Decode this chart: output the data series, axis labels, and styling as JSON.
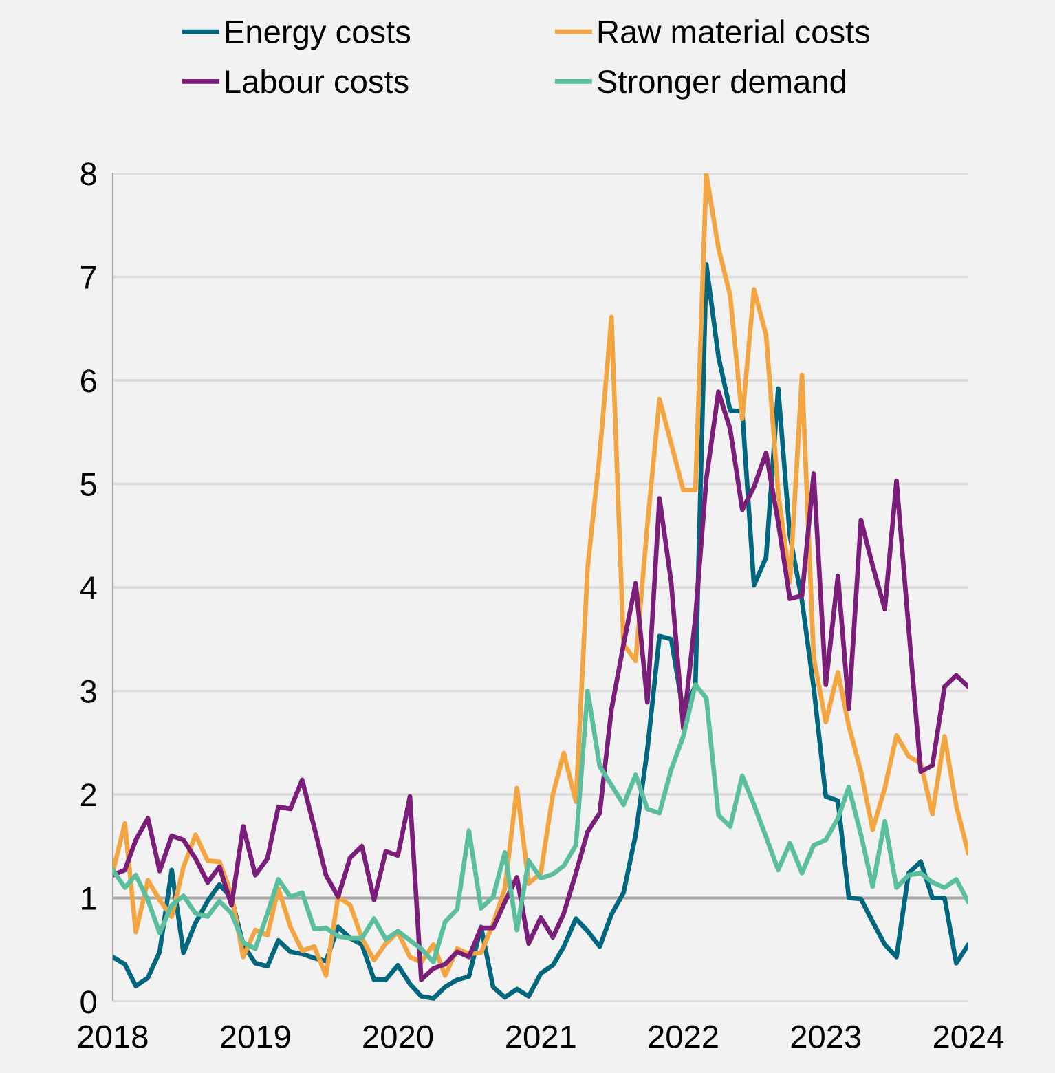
{
  "chart_data": {
    "type": "line",
    "x": [
      "2018-01",
      "2018-02",
      "2018-03",
      "2018-04",
      "2018-05",
      "2018-06",
      "2018-07",
      "2018-08",
      "2018-09",
      "2018-10",
      "2018-11",
      "2018-12",
      "2019-01",
      "2019-02",
      "2019-03",
      "2019-04",
      "2019-05",
      "2019-06",
      "2019-07",
      "2019-08",
      "2019-09",
      "2019-10",
      "2019-11",
      "2019-12",
      "2020-01",
      "2020-02",
      "2020-03",
      "2020-04",
      "2020-05",
      "2020-06",
      "2020-07",
      "2020-08",
      "2020-09",
      "2020-10",
      "2020-11",
      "2020-12",
      "2021-01",
      "2021-02",
      "2021-03",
      "2021-04",
      "2021-05",
      "2021-06",
      "2021-07",
      "2021-08",
      "2021-09",
      "2021-10",
      "2021-11",
      "2021-12",
      "2022-01",
      "2022-02",
      "2022-03",
      "2022-04",
      "2022-05",
      "2022-06",
      "2022-07",
      "2022-08",
      "2022-09",
      "2022-10",
      "2022-11",
      "2022-12",
      "2023-01",
      "2023-02",
      "2023-03",
      "2023-04",
      "2023-05",
      "2023-06",
      "2023-07",
      "2023-08",
      "2023-09",
      "2023-10",
      "2023-11",
      "2023-12",
      "2024-01"
    ],
    "series": [
      {
        "name": "Energy costs",
        "color": "#00677f",
        "values": [
          0.43,
          0.36,
          0.15,
          0.23,
          0.48,
          1.27,
          0.47,
          0.76,
          0.97,
          1.13,
          1.0,
          0.55,
          0.37,
          0.34,
          0.59,
          0.48,
          0.46,
          0.42,
          0.39,
          0.72,
          0.61,
          0.55,
          0.21,
          0.21,
          0.35,
          0.17,
          0.05,
          0.03,
          0.14,
          0.21,
          0.24,
          0.72,
          0.14,
          0.04,
          0.12,
          0.05,
          0.27,
          0.35,
          0.53,
          0.8,
          0.68,
          0.53,
          0.84,
          1.05,
          1.61,
          2.43,
          3.53,
          3.5,
          2.8,
          3.05,
          7.12,
          6.23,
          5.71,
          5.7,
          4.02,
          4.29,
          5.92,
          4.5,
          3.87,
          3.03,
          1.98,
          1.94,
          1.0,
          0.99,
          0.77,
          0.55,
          0.43,
          1.24,
          1.35,
          1.0,
          1.0,
          0.37,
          0.55
        ]
      },
      {
        "name": "Raw material costs",
        "color": "#f2a541",
        "values": [
          1.25,
          1.72,
          0.67,
          1.17,
          0.98,
          0.82,
          1.3,
          1.61,
          1.36,
          1.35,
          1.03,
          0.43,
          0.69,
          0.64,
          1.09,
          0.72,
          0.49,
          0.53,
          0.25,
          1.01,
          0.93,
          0.61,
          0.4,
          0.56,
          0.67,
          0.43,
          0.38,
          0.55,
          0.25,
          0.51,
          0.46,
          0.47,
          0.75,
          1.09,
          2.06,
          1.14,
          1.24,
          2.0,
          2.4,
          1.93,
          4.19,
          5.29,
          6.61,
          3.45,
          3.29,
          4.6,
          5.82,
          5.39,
          4.94,
          4.94,
          7.99,
          7.28,
          6.82,
          5.63,
          6.88,
          6.44,
          4.92,
          4.05,
          6.05,
          3.32,
          2.7,
          3.18,
          2.66,
          2.22,
          1.66,
          2.06,
          2.57,
          2.37,
          2.3,
          1.81,
          2.56,
          1.89,
          1.43
        ]
      },
      {
        "name": "Labour costs",
        "color": "#7b1e7a",
        "values": [
          1.22,
          1.27,
          1.56,
          1.77,
          1.26,
          1.6,
          1.56,
          1.38,
          1.15,
          1.3,
          0.93,
          1.69,
          1.22,
          1.38,
          1.88,
          1.86,
          2.14,
          1.68,
          1.22,
          1.01,
          1.39,
          1.5,
          0.98,
          1.45,
          1.41,
          1.98,
          0.21,
          0.32,
          0.36,
          0.48,
          0.43,
          0.71,
          0.71,
          0.96,
          1.2,
          0.56,
          0.81,
          0.62,
          0.85,
          1.24,
          1.64,
          1.82,
          2.82,
          3.45,
          4.04,
          2.89,
          4.86,
          4.05,
          2.64,
          3.71,
          5.05,
          5.89,
          5.53,
          4.75,
          4.97,
          5.3,
          4.63,
          3.89,
          3.92,
          5.1,
          3.06,
          4.11,
          2.83,
          4.65,
          4.21,
          3.79,
          5.03,
          3.61,
          2.22,
          2.28,
          3.04,
          3.15,
          3.04
        ]
      },
      {
        "name": "Stronger demand",
        "color": "#5bbf9f",
        "values": [
          1.27,
          1.1,
          1.22,
          0.98,
          0.66,
          0.93,
          1.02,
          0.85,
          0.82,
          0.97,
          0.85,
          0.57,
          0.51,
          0.85,
          1.18,
          1.01,
          1.05,
          0.7,
          0.71,
          0.63,
          0.61,
          0.61,
          0.8,
          0.6,
          0.68,
          0.59,
          0.51,
          0.38,
          0.77,
          0.89,
          1.65,
          0.9,
          1.01,
          1.44,
          0.69,
          1.36,
          1.19,
          1.23,
          1.31,
          1.51,
          3.0,
          2.27,
          2.09,
          1.9,
          2.19,
          1.86,
          1.82,
          2.24,
          2.56,
          3.06,
          2.93,
          1.8,
          1.69,
          2.18,
          1.9,
          1.59,
          1.27,
          1.53,
          1.24,
          1.51,
          1.56,
          1.77,
          2.07,
          1.61,
          1.11,
          1.74,
          1.1,
          1.22,
          1.24,
          1.15,
          1.1,
          1.18,
          0.96
        ]
      }
    ],
    "xlim": [
      "2018-01",
      "2024-01"
    ],
    "xticks": [
      {
        "value": "2018-01",
        "label": "2018"
      },
      {
        "value": "2019-01",
        "label": "2019"
      },
      {
        "value": "2020-01",
        "label": "2020"
      },
      {
        "value": "2021-01",
        "label": "2021"
      },
      {
        "value": "2022-01",
        "label": "2022"
      },
      {
        "value": "2023-01",
        "label": "2023"
      },
      {
        "value": "2024-01",
        "label": "2024"
      }
    ],
    "ylim": [
      0,
      8
    ],
    "yticks": [
      0,
      1,
      2,
      3,
      4,
      5,
      6,
      7,
      8
    ],
    "ref_lines": [
      {
        "axis": "y",
        "value": 1,
        "color": "#a6a6a6"
      }
    ],
    "grid": "y",
    "legend": "top",
    "marker": "none",
    "line_style": "solid"
  }
}
